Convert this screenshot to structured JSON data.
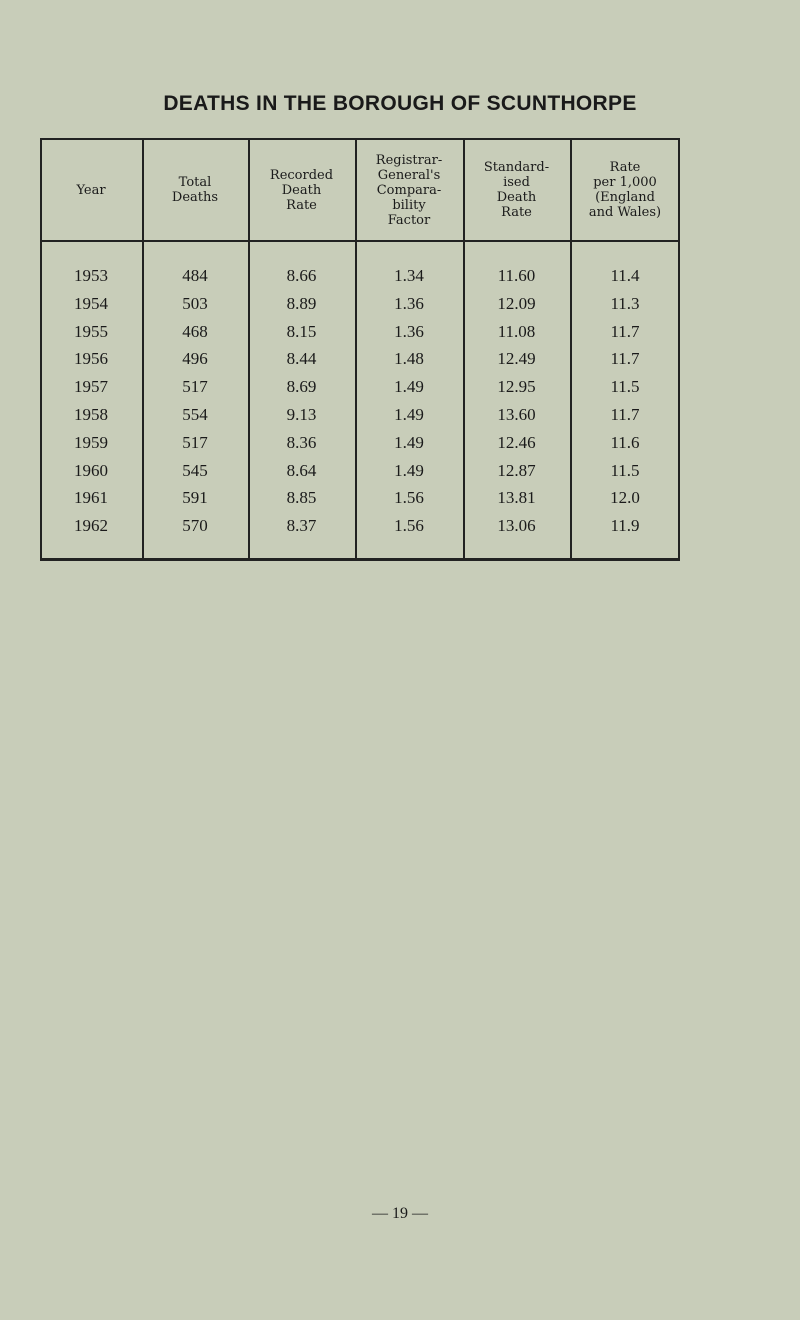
{
  "title": "DEATHS IN THE BOROUGH OF SCUNTHORPE",
  "table": {
    "headers": [
      "Year",
      "Total\nDeaths",
      "Recorded\nDeath\nRate",
      "Registrar-\nGeneral's\nCompara-\nbility\nFactor",
      "Standard-\nised\nDeath\nRate",
      "Rate\nper 1,000\n(England\nand Wales)"
    ],
    "rows": [
      [
        "1953",
        "484",
        "8.66",
        "1.34",
        "11.60",
        "11.4"
      ],
      [
        "1954",
        "503",
        "8.89",
        "1.36",
        "12.09",
        "11.3"
      ],
      [
        "1955",
        "468",
        "8.15",
        "1.36",
        "11.08",
        "11.7"
      ],
      [
        "1956",
        "496",
        "8.44",
        "1.48",
        "12.49",
        "11.7"
      ],
      [
        "1957",
        "517",
        "8.69",
        "1.49",
        "12.95",
        "11.5"
      ],
      [
        "1958",
        "554",
        "9.13",
        "1.49",
        "13.60",
        "11.7"
      ],
      [
        "1959",
        "517",
        "8.36",
        "1.49",
        "12.46",
        "11.6"
      ],
      [
        "1960",
        "545",
        "8.64",
        "1.49",
        "12.87",
        "11.5"
      ],
      [
        "1961",
        "591",
        "8.85",
        "1.56",
        "13.81",
        "12.0"
      ],
      [
        "1962",
        "570",
        "8.37",
        "1.56",
        "13.06",
        "11.9"
      ]
    ]
  },
  "footer": "— 19 —"
}
